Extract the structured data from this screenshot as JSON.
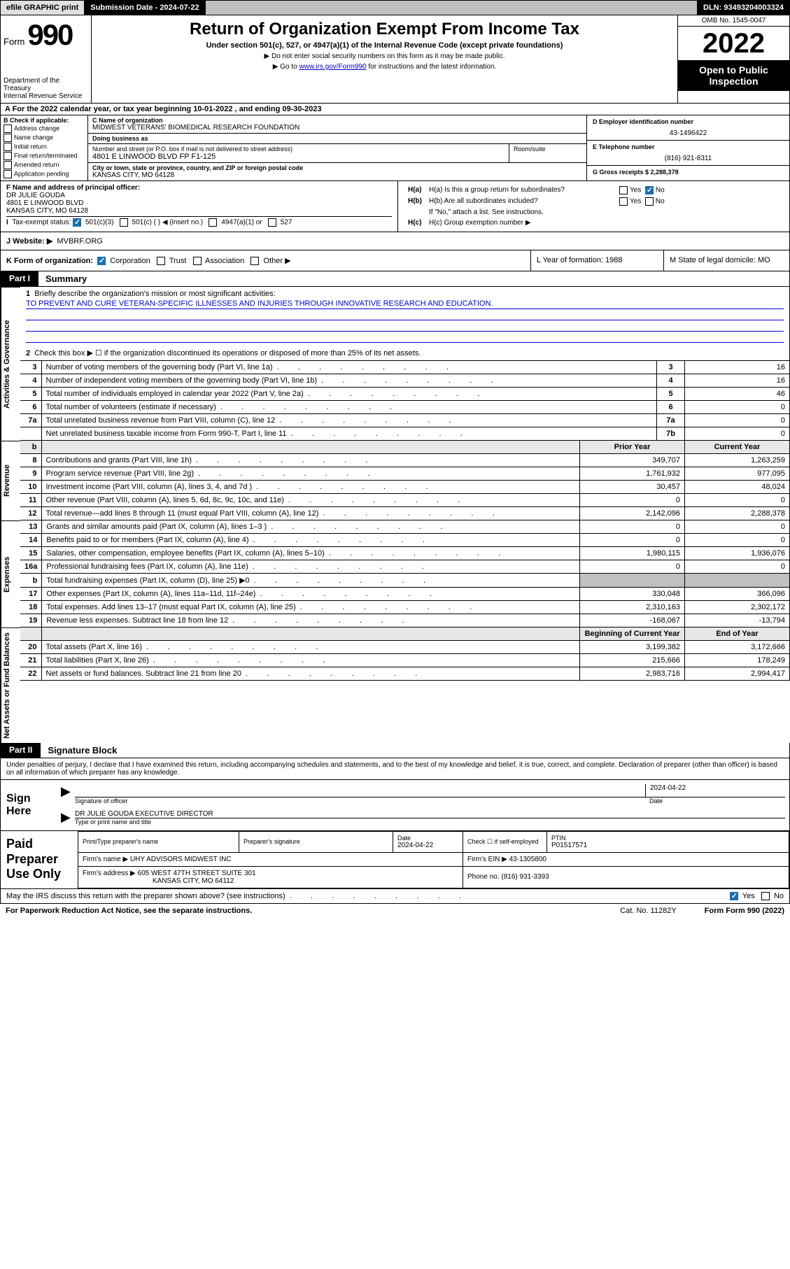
{
  "topbar": {
    "efile": "efile GRAPHIC print",
    "submission_label": "Submission Date - 2024-07-22",
    "dln": "DLN: 93493204003324"
  },
  "header": {
    "form_word": "Form",
    "form_num": "990",
    "dept": "Department of the Treasury\nInternal Revenue Service",
    "title": "Return of Organization Exempt From Income Tax",
    "sub": "Under section 501(c), 527, or 4947(a)(1) of the Internal Revenue Code (except private foundations)",
    "sub2a": "▶ Do not enter social security numbers on this form as it may be made public.",
    "sub2b_pre": "▶ Go to ",
    "sub2b_link": "www.irs.gov/Form990",
    "sub2b_post": " for instructions and the latest information.",
    "omb": "OMB No. 1545-0047",
    "year": "2022",
    "open": "Open to Public Inspection"
  },
  "rowA": "A For the 2022 calendar year, or tax year beginning 10-01-2022    , and ending 09-30-2023",
  "colB": {
    "hdr": "B Check if applicable:",
    "items": [
      "Address change",
      "Name change",
      "Initial return",
      "Final return/terminated",
      "Amended return",
      "Application pending"
    ]
  },
  "colC": {
    "name_lbl": "C Name of organization",
    "name": "MIDWEST VETERANS' BIOMEDICAL RESEARCH FOUNDATION",
    "dba_lbl": "Doing business as",
    "dba": "",
    "street_lbl": "Number and street (or P.O. box if mail is not delivered to street address)",
    "room_lbl": "Room/suite",
    "street": "4801 E LINWOOD BLVD FP F1-125",
    "city_lbl": "City or town, state or province, country, and ZIP or foreign postal code",
    "city": "KANSAS CITY, MO  64128"
  },
  "colD": {
    "d_lbl": "D Employer identification number",
    "d_val": "43-1496422",
    "e_lbl": "E Telephone number",
    "e_val": "(816) 921-8311",
    "g_lbl": "G Gross receipts $ 2,288,378"
  },
  "rowF": {
    "lbl": "F Name and address of principal officer:",
    "l1": "DR JULIE GOUDA",
    "l2": "4801 E LINWOOD BLVD",
    "l3": "KANSAS CITY, MO  64128"
  },
  "rowH": {
    "a_lbl": "H(a)  Is this a group return for subordinates?",
    "a_yes": "Yes",
    "a_no": "No",
    "b_lbl": "H(b)  Are all subordinates included?",
    "b_yes": "Yes",
    "b_no": "No",
    "b_note": "If \"No,\" attach a list. See instructions.",
    "c_lbl": "H(c)  Group exemption number ▶"
  },
  "rowI": {
    "lbl": "Tax-exempt status:",
    "c1": "501(c)(3)",
    "c2": "501(c) (   ) ◀ (insert no.)",
    "c3": "4947(a)(1) or",
    "c4": "527"
  },
  "rowJ": {
    "lbl": "J   Website: ▶",
    "val": "MVBRF.ORG"
  },
  "rowK": {
    "lbl": "K Form of organization:",
    "c1": "Corporation",
    "c2": "Trust",
    "c3": "Association",
    "c4": "Other ▶"
  },
  "rowL": {
    "lbl": "L Year of formation: 1988"
  },
  "rowM": {
    "lbl": "M State of legal domicile: MO"
  },
  "part1": {
    "tag": "Part I",
    "title": "Summary",
    "line1": "Briefly describe the organization's mission or most significant activities:",
    "mission": "TO PREVENT AND CURE VETERAN-SPECIFIC ILLNESSES AND INJURIES THROUGH INNOVATIVE RESEARCH AND EDUCATION.",
    "line2": "Check this box ▶ ☐  if the organization discontinued its operations or disposed of more than 25% of its net assets.",
    "prior_hdr": "Prior Year",
    "curr_hdr": "Current Year",
    "boy_hdr": "Beginning of Current Year",
    "eoy_hdr": "End of Year"
  },
  "side_tabs": {
    "gov": "Activities & Governance",
    "rev": "Revenue",
    "exp": "Expenses",
    "net": "Net Assets or Fund Balances"
  },
  "gov_lines": [
    {
      "n": "3",
      "d": "Number of voting members of the governing body (Part VI, line 1a)",
      "box": "3",
      "v": "16"
    },
    {
      "n": "4",
      "d": "Number of independent voting members of the governing body (Part VI, line 1b)",
      "box": "4",
      "v": "16"
    },
    {
      "n": "5",
      "d": "Total number of individuals employed in calendar year 2022 (Part V, line 2a)",
      "box": "5",
      "v": "46"
    },
    {
      "n": "6",
      "d": "Total number of volunteers (estimate if necessary)",
      "box": "6",
      "v": "0"
    },
    {
      "n": "7a",
      "d": "Total unrelated business revenue from Part VIII, column (C), line 12",
      "box": "7a",
      "v": "0"
    },
    {
      "n": "",
      "d": "Net unrelated business taxable income from Form 990-T, Part I, line 11",
      "box": "7b",
      "v": "0"
    }
  ],
  "rev_lines": [
    {
      "n": "8",
      "d": "Contributions and grants (Part VIII, line 1h)",
      "p": "349,707",
      "c": "1,263,259"
    },
    {
      "n": "9",
      "d": "Program service revenue (Part VIII, line 2g)",
      "p": "1,761,932",
      "c": "977,095"
    },
    {
      "n": "10",
      "d": "Investment income (Part VIII, column (A), lines 3, 4, and 7d )",
      "p": "30,457",
      "c": "48,024"
    },
    {
      "n": "11",
      "d": "Other revenue (Part VIII, column (A), lines 5, 6d, 8c, 9c, 10c, and 11e)",
      "p": "0",
      "c": "0"
    },
    {
      "n": "12",
      "d": "Total revenue—add lines 8 through 11 (must equal Part VIII, column (A), line 12)",
      "p": "2,142,096",
      "c": "2,288,378"
    }
  ],
  "exp_lines": [
    {
      "n": "13",
      "d": "Grants and similar amounts paid (Part IX, column (A), lines 1–3 )",
      "p": "0",
      "c": "0"
    },
    {
      "n": "14",
      "d": "Benefits paid to or for members (Part IX, column (A), line 4)",
      "p": "0",
      "c": "0"
    },
    {
      "n": "15",
      "d": "Salaries, other compensation, employee benefits (Part IX, column (A), lines 5–10)",
      "p": "1,980,115",
      "c": "1,936,076"
    },
    {
      "n": "16a",
      "d": "Professional fundraising fees (Part IX, column (A), line 11e)",
      "p": "0",
      "c": "0"
    },
    {
      "n": "b",
      "d": "Total fundraising expenses (Part IX, column (D), line 25) ▶0",
      "p": "",
      "c": "",
      "grey": true
    },
    {
      "n": "17",
      "d": "Other expenses (Part IX, column (A), lines 11a–11d, 11f–24e)",
      "p": "330,048",
      "c": "366,096"
    },
    {
      "n": "18",
      "d": "Total expenses. Add lines 13–17 (must equal Part IX, column (A), line 25)",
      "p": "2,310,163",
      "c": "2,302,172"
    },
    {
      "n": "19",
      "d": "Revenue less expenses. Subtract line 18 from line 12",
      "p": "-168,067",
      "c": "-13,794"
    }
  ],
  "net_lines": [
    {
      "n": "20",
      "d": "Total assets (Part X, line 16)",
      "p": "3,199,382",
      "c": "3,172,666"
    },
    {
      "n": "21",
      "d": "Total liabilities (Part X, line 26)",
      "p": "215,666",
      "c": "178,249"
    },
    {
      "n": "22",
      "d": "Net assets or fund balances. Subtract line 21 from line 20",
      "p": "2,983,716",
      "c": "2,994,417"
    }
  ],
  "part2": {
    "tag": "Part II",
    "title": "Signature Block",
    "decl": "Under penalties of perjury, I declare that I have examined this return, including accompanying schedules and statements, and to the best of my knowledge and belief, it is true, correct, and complete. Declaration of preparer (other than officer) is based on all information of which preparer has any knowledge."
  },
  "sign": {
    "here": "Sign Here",
    "sig_lbl": "Signature of officer",
    "date_lbl": "Date",
    "date": "2024-04-22",
    "name": "DR JULIE GOUDA  EXECUTIVE DIRECTOR",
    "name_lbl": "Type or print name and title"
  },
  "prep": {
    "here": "Paid Preparer Use Only",
    "r1c1": "Print/Type preparer's name",
    "r1c2": "Preparer's signature",
    "r1c3_lbl": "Date",
    "r1c3": "2024-04-22",
    "r1c4_lbl": "Check ☐ if self-employed",
    "r1c5_lbl": "PTIN",
    "r1c5": "P01517571",
    "r2c1_lbl": "Firm's name    ▶",
    "r2c1": "UHY ADVISORS MIDWEST INC",
    "r2c2_lbl": "Firm's EIN ▶",
    "r2c2": "43-1305800",
    "r3c1_lbl": "Firm's address ▶",
    "r3c1": "605 WEST 47TH STREET SUITE 301",
    "r3c1b": "KANSAS CITY, MO  64112",
    "r3c2_lbl": "Phone no.",
    "r3c2": "(816) 931-3393"
  },
  "footer": {
    "discuss": "May the IRS discuss this return with the preparer shown above? (see instructions)",
    "yes": "Yes",
    "no": "No",
    "paperwork": "For Paperwork Reduction Act Notice, see the separate instructions.",
    "cat": "Cat. No. 11282Y",
    "form": "Form 990 (2022)"
  }
}
